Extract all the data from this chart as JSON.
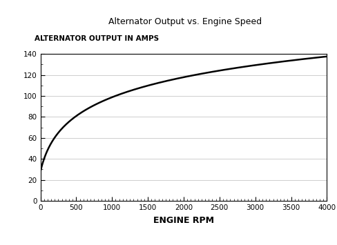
{
  "title": "Alternator Output vs. Engine Speed",
  "ylabel": "ALTERNATOR OUTPUT IN AMPS",
  "xlabel": "ENGINE RPM",
  "xlim": [
    0,
    4000
  ],
  "ylim": [
    0,
    140
  ],
  "x_major_ticks": [
    0,
    500,
    1000,
    1500,
    2000,
    2500,
    3000,
    3500,
    4000
  ],
  "y_major_ticks": [
    0,
    20,
    40,
    60,
    80,
    100,
    120,
    140
  ],
  "curve_end_rpm": 4000,
  "curve_y0": 28,
  "curve_A": 29.5,
  "curve_B": 0.01,
  "line_color": "#000000",
  "line_width": 1.8,
  "grid_color": "#bbbbbb",
  "grid_linewidth": 0.5,
  "background_color": "#ffffff",
  "title_fontsize": 9,
  "xlabel_fontsize": 9,
  "ylabel_fontsize": 7.5,
  "tick_label_fontsize": 7.5
}
